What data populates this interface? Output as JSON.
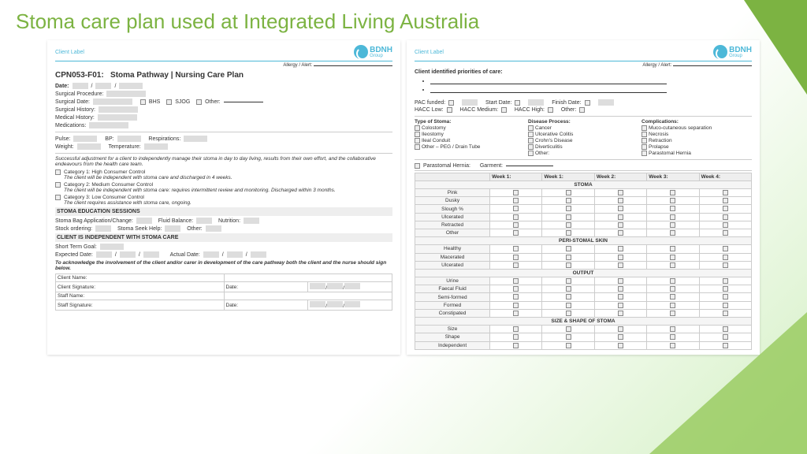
{
  "title": "Stoma care plan used at Integrated Living Australia",
  "logo": {
    "brand": "BDNH",
    "sub": "Group",
    "color": "#4db8d8"
  },
  "left": {
    "client_label": "Client Label",
    "allergy": "Allergy / Alert:",
    "code": "CPN053-F01:",
    "name": "Stoma Pathway | Nursing Care Plan",
    "date": "Date:",
    "fields": [
      "Surgical Procedure:",
      "Surgical Date:",
      "Surgical History:",
      "Medical History:",
      "Medications:"
    ],
    "surg_opts": [
      "BHS",
      "SJOG",
      "Other:"
    ],
    "vitals": [
      [
        "Pulse:",
        "BP:",
        "Respirations:"
      ],
      [
        "Weight:",
        "Temperature:",
        ""
      ]
    ],
    "blurb": "Successful adjustment for a client to independently manage their stoma in day to day living, results from their own effort, and the collaborative endeavours from the health care team.",
    "cats": [
      {
        "t": "Category 1: High Consumer Control",
        "d": "The client will be independent with stoma care and discharged in 4 weeks."
      },
      {
        "t": "Category 2: Medium Consumer Control",
        "d": "The client will be independent with stoma care: requires intermittent review and monitoring. Discharged within 3 months."
      },
      {
        "t": "Category 3: Low Consumer Control",
        "d": "The client requires assistance with stoma care, ongoing."
      }
    ],
    "edu_h": "STOMA EDUCATION SESSIONS",
    "edu": [
      [
        "Stoma Bag Application/Change:",
        "Fluid Balance:",
        "Nutrition:"
      ],
      [
        "Stock ordering:",
        "Stoma Seek Help:",
        "Other:"
      ]
    ],
    "ind_h": "CLIENT IS INDEPENDENT WITH STOMA CARE",
    "stg": "Short Term Goal:",
    "exp": "Expected Date:",
    "act": "Actual Date:",
    "ack": "To acknowledge the involvement of the client and/or carer in development of the care pathway both the client and the nurse should sign below.",
    "sig": [
      "Client Name:",
      "Client Signature:",
      "Staff Name:",
      "Staff Signature:"
    ],
    "dlab": "Date:"
  },
  "right": {
    "pri": "Client identified priorities of care:",
    "pac": [
      "PAC funded:",
      "Start Date:",
      "Finish Date:"
    ],
    "hacc": [
      "HACC Low:",
      "HACC Medium:",
      "HACC High:",
      "Other:"
    ],
    "types": {
      "h": "Type of Stoma:",
      "i": [
        "Colostomy",
        "Ileostomy",
        "Ileal Conduit",
        "Other – PEG / Drain Tube"
      ]
    },
    "disease": {
      "h": "Disease Process:",
      "i": [
        "Cancer",
        "Ulcerative Colitis",
        "Crohn's Disease",
        "Diverticulitis",
        "Other:"
      ]
    },
    "comp": {
      "h": "Complications:",
      "i": [
        "Muco-cutaneous separation",
        "Necrosis",
        "Retraction",
        "Prolapse",
        "Parastomal Hernia"
      ]
    },
    "ph": "Parastomal Hernia:",
    "garm": "Garment:",
    "weeks": [
      "Week 1:",
      "Week 1:",
      "Week 2:",
      "Week 3:",
      "Week 4:"
    ],
    "grps": [
      {
        "h": "STOMA",
        "r": [
          "Pink",
          "Dusky",
          "Slough %",
          "Ulcerated",
          "Retracted",
          "Other"
        ]
      },
      {
        "h": "PERI-STOMAL SKIN",
        "r": [
          "Healthy",
          "Macerated",
          "Ulcerated"
        ]
      },
      {
        "h": "OUTPUT",
        "r": [
          "Urine",
          "Faecal Fluid",
          "Semi-formed",
          "Formed",
          "Constipated"
        ]
      },
      {
        "h": "SIZE & SHAPE OF STOMA",
        "r": [
          "Size",
          "Shape",
          "Independent"
        ]
      }
    ]
  }
}
